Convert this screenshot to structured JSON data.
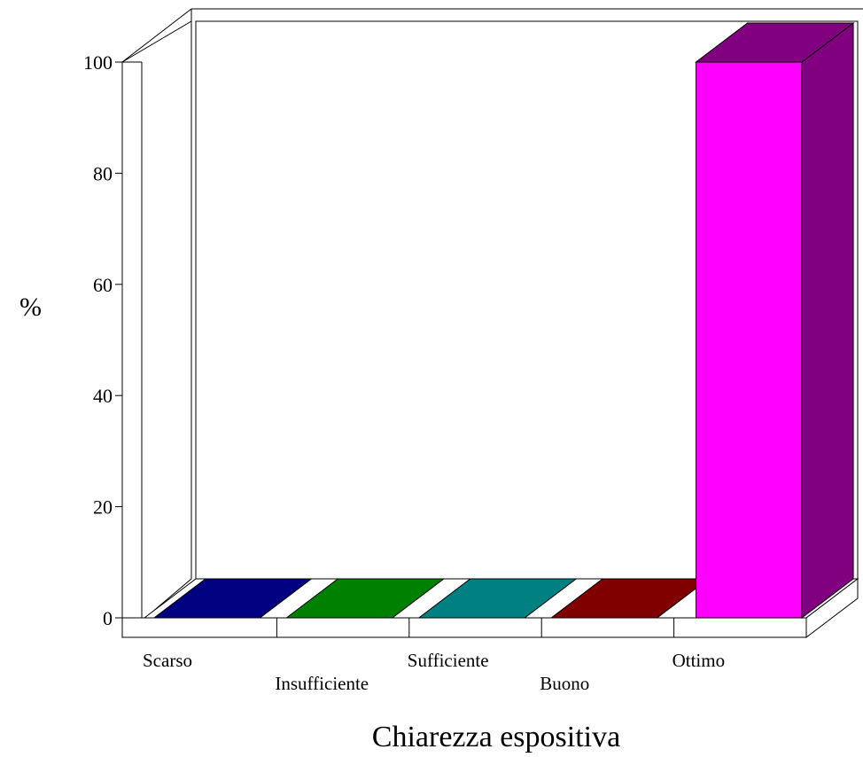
{
  "chart_data": {
    "type": "bar",
    "style": "3d",
    "title": "",
    "xlabel": "Chiarezza espositiva",
    "ylabel": "%",
    "ylim": [
      0,
      100
    ],
    "yticks": [
      0,
      20,
      40,
      60,
      80,
      100
    ],
    "categories": [
      "Scarso",
      "Insufficiente",
      "Sufficiente",
      "Buono",
      "Ottimo"
    ],
    "values": [
      0,
      0,
      0,
      0,
      100
    ],
    "colors": [
      {
        "front": "#000080",
        "side": "#000060"
      },
      {
        "front": "#008000",
        "side": "#006000"
      },
      {
        "front": "#008080",
        "side": "#006060"
      },
      {
        "front": "#800000",
        "side": "#600000"
      },
      {
        "front": "#FF00FF",
        "side": "#800080"
      }
    ],
    "grid": false,
    "legend": "none"
  }
}
